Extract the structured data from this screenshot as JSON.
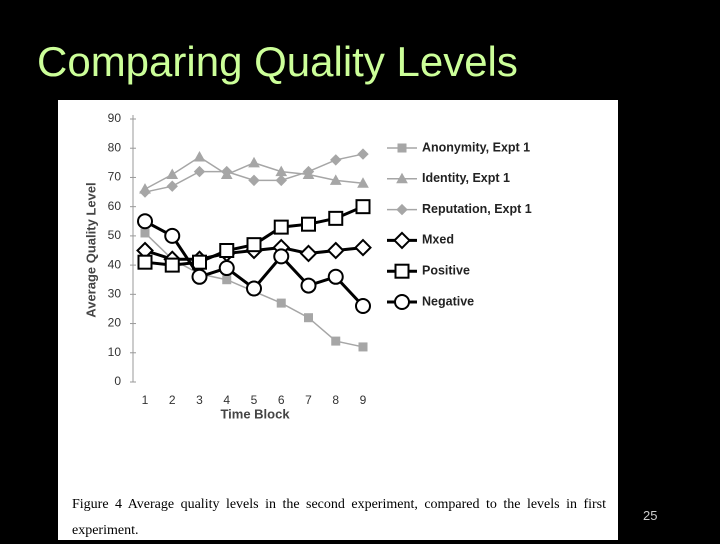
{
  "slide": {
    "title": "Comparing Quality Levels",
    "page_number": "25"
  },
  "chart_data": {
    "type": "line",
    "caption": "Figure 4  Average quality levels in the second experiment, compared to the levels in first experiment.",
    "y_label": "Average Quality Level",
    "x_label": "Time Block",
    "categories": [
      "1",
      "2",
      "3",
      "4",
      "5",
      "6",
      "7",
      "8",
      "9"
    ],
    "ylim": [
      0,
      90
    ],
    "yticks": [
      0,
      10,
      20,
      30,
      40,
      50,
      60,
      70,
      80,
      90
    ],
    "series": [
      {
        "name": "Anonymity, Expt 1",
        "color": "#a6a6a6",
        "marker": "square",
        "marker_fill": "#a6a6a6",
        "line_width": 1.5,
        "values": [
          51,
          42,
          37,
          35,
          31,
          27,
          22,
          14,
          12
        ]
      },
      {
        "name": "Identity, Expt 1",
        "color": "#a6a6a6",
        "marker": "triangle",
        "marker_fill": "#a6a6a6",
        "line_width": 1.5,
        "values": [
          66,
          71,
          77,
          71,
          75,
          72,
          71,
          69,
          68
        ]
      },
      {
        "name": "Reputation, Expt 1",
        "color": "#a6a6a6",
        "marker": "diamond",
        "marker_fill": "#a6a6a6",
        "line_width": 1.5,
        "values": [
          65,
          67,
          72,
          72,
          69,
          69,
          72,
          76,
          78
        ]
      },
      {
        "name": "Mxed",
        "color": "#000000",
        "marker": "diamond",
        "marker_fill": "#ffffff",
        "line_width": 3,
        "values": [
          45,
          42,
          42,
          44,
          45,
          46,
          44,
          45,
          46
        ]
      },
      {
        "name": "Positive",
        "color": "#000000",
        "marker": "square",
        "marker_fill": "#ffffff",
        "line_width": 3,
        "values": [
          41,
          40,
          41,
          45,
          47,
          53,
          54,
          56,
          60
        ]
      },
      {
        "name": "Negative",
        "color": "#000000",
        "marker": "circle",
        "marker_fill": "#ffffff",
        "line_width": 3,
        "values": [
          55,
          50,
          36,
          39,
          32,
          43,
          33,
          36,
          26
        ]
      }
    ]
  }
}
